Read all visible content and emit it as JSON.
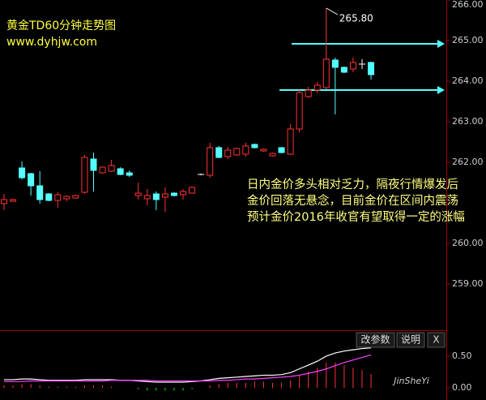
{
  "chart_data": [
    {
      "type": "candlestick",
      "title": "黄金TD60分钟走势图",
      "subtitle": "www.dyhjw.com",
      "open": [
        260.98,
        261.04,
        261.86,
        261.72,
        261.42,
        261.22,
        261.06,
        261.1,
        261.12,
        261.26,
        262.08,
        261.74,
        261.78,
        261.84,
        261.74,
        261.18,
        261.1,
        261.22,
        261.14,
        261.24,
        261.2,
        261.24,
        261.7,
        261.68,
        262.36,
        262.14,
        262.18,
        262.2,
        262.44,
        262.28,
        262.16,
        262.36,
        262.2,
        262.82,
        263.62,
        263.78,
        263.84,
        264.52,
        264.34,
        264.3,
        264.42,
        264.46
      ],
      "high": [
        261.22,
        261.1,
        262.02,
        261.74,
        261.78,
        261.24,
        261.26,
        261.18,
        261.2,
        262.18,
        262.24,
        261.9,
        262.06,
        261.88,
        261.8,
        261.5,
        261.34,
        261.28,
        261.38,
        261.26,
        261.34,
        261.4,
        261.72,
        262.48,
        262.4,
        262.38,
        262.36,
        262.48,
        262.46,
        262.34,
        262.24,
        262.38,
        262.94,
        263.78,
        263.86,
        263.98,
        265.8,
        264.58,
        264.36,
        264.58,
        264.54,
        264.48
      ],
      "low": [
        260.82,
        261.02,
        261.58,
        261.18,
        260.98,
        261.04,
        260.88,
        261.04,
        261.1,
        261.22,
        261.28,
        261.72,
        261.76,
        261.68,
        261.64,
        261.08,
        260.94,
        260.82,
        260.78,
        261.16,
        261.08,
        261.22,
        261.68,
        261.62,
        262.1,
        262.08,
        262.16,
        262.14,
        262.34,
        262.26,
        262.14,
        262.22,
        262.18,
        262.74,
        263.58,
        263.7,
        263.8,
        263.18,
        264.2,
        264.22,
        264.3,
        264.04
      ],
      "close": [
        261.08,
        261.08,
        261.62,
        261.42,
        261.08,
        261.06,
        261.2,
        261.16,
        261.18,
        262.12,
        261.8,
        261.88,
        261.92,
        261.7,
        261.68,
        261.24,
        261.18,
        261.08,
        261.22,
        261.18,
        261.28,
        261.38,
        261.7,
        262.36,
        262.12,
        262.3,
        262.34,
        262.4,
        262.36,
        262.32,
        262.22,
        262.24,
        262.82,
        263.72,
        263.78,
        263.9,
        264.54,
        264.34,
        264.22,
        264.46,
        264.42,
        264.16
      ],
      "up_color": "#ff3232",
      "down_color": "#54ffff",
      "ylim": [
        257.9,
        266
      ],
      "yticks": [
        {
          "value": 259,
          "label": "259.00"
        },
        {
          "value": 260,
          "label": "260.00"
        },
        {
          "value": 262,
          "label": "262.00"
        },
        {
          "value": 263,
          "label": "263.00"
        },
        {
          "value": 264,
          "label": "264.00"
        },
        {
          "value": 265,
          "label": "265.00"
        },
        {
          "value": 266,
          "label": "266.00"
        }
      ],
      "annotation": {
        "text": "265.80",
        "value": 265.8
      },
      "levels": {
        "values": [
          264.92,
          263.78
        ],
        "color": "#54ffff"
      },
      "text_lines": [
        "日内金价多头相对乏力，隔夜行情爆发后",
        "金价回落无悬念，目前金价在区间内震荡",
        "预计金价2016年收官有望取得一定的涨幅"
      ]
    },
    {
      "type": "line",
      "series": [
        {
          "color": "#ffffff",
          "values": [
            0.13,
            0.13,
            0.14,
            0.14,
            0.13,
            0.12,
            0.12,
            0.12,
            0.12,
            0.13,
            0.13,
            0.13,
            0.13,
            0.12,
            0.12,
            0.11,
            0.1,
            0.09,
            0.09,
            0.09,
            0.09,
            0.1,
            0.11,
            0.13,
            0.15,
            0.16,
            0.17,
            0.18,
            0.19,
            0.2,
            0.2,
            0.21,
            0.24,
            0.3,
            0.36,
            0.42,
            0.5,
            0.55,
            0.58,
            0.6,
            0.62,
            0.63
          ]
        },
        {
          "color": "#ff40ff",
          "values": [
            0.1,
            0.1,
            0.1,
            0.11,
            0.11,
            0.11,
            0.11,
            0.11,
            0.11,
            0.11,
            0.11,
            0.11,
            0.12,
            0.12,
            0.12,
            0.12,
            0.12,
            0.11,
            0.11,
            0.11,
            0.11,
            0.11,
            0.11,
            0.11,
            0.12,
            0.12,
            0.13,
            0.14,
            0.14,
            0.15,
            0.16,
            0.17,
            0.18,
            0.2,
            0.23,
            0.26,
            0.3,
            0.35,
            0.4,
            0.44,
            0.48,
            0.52
          ]
        }
      ],
      "bars": {
        "up_color": "#ff3232",
        "down_color": "#00ff00",
        "values": [
          0.04,
          0.04,
          0.06,
          0.06,
          0.04,
          0.02,
          0.02,
          0.02,
          0.02,
          0.04,
          0.04,
          0.04,
          0.02,
          0,
          0,
          -0.02,
          -0.04,
          -0.04,
          -0.04,
          -0.04,
          -0.04,
          -0.02,
          0,
          0.04,
          0.06,
          0.08,
          0.08,
          0.08,
          0.1,
          0.1,
          0.08,
          0.08,
          0.12,
          0.2,
          0.26,
          0.32,
          0.4,
          0.4,
          0.36,
          0.32,
          0.28,
          0.22
        ]
      },
      "ylim": [
        -0.19,
        0.87
      ],
      "yticks": [
        {
          "value": 0.5,
          "label": "0.50"
        },
        {
          "value": 0,
          "label": "0.00"
        }
      ],
      "controls": [
        "改参数",
        "说明",
        "X"
      ]
    }
  ],
  "watermark": "JinSheYi"
}
